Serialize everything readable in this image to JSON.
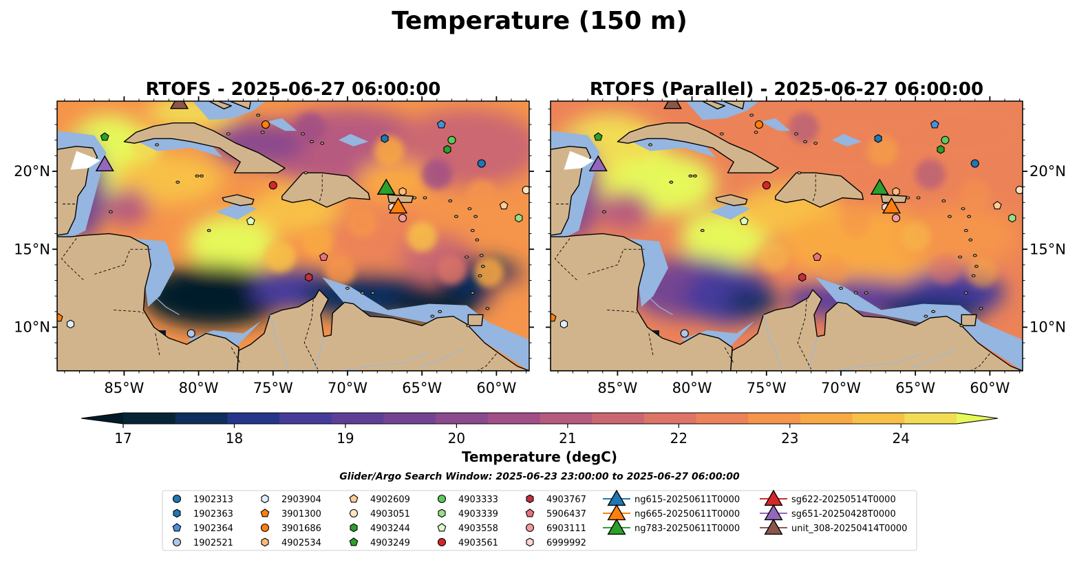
{
  "figure": {
    "title": "Temperature (150 m)",
    "search_window": "Glider/Argo Search Window: 2025-06-23 23:00:00 to 2025-06-27 06:00:00"
  },
  "panels": [
    {
      "title": "RTOFS - 2025-06-27 06:00:00",
      "variant": "rtofs"
    },
    {
      "title": "RTOFS (Parallel) - 2025-06-27 06:00:00",
      "variant": "parallel"
    }
  ],
  "map": {
    "lon_range": [
      -89.5,
      -57.8
    ],
    "lat_range": [
      7.2,
      24.5
    ],
    "lon_ticks": [
      {
        "value": -85,
        "label": "85°W"
      },
      {
        "value": -80,
        "label": "80°W"
      },
      {
        "value": -75,
        "label": "75°W"
      },
      {
        "value": -70,
        "label": "70°W"
      },
      {
        "value": -65,
        "label": "65°W"
      },
      {
        "value": -60,
        "label": "60°W"
      }
    ],
    "lat_ticks": [
      {
        "value": 20,
        "label": "20°N"
      },
      {
        "value": 15,
        "label": "15°N"
      },
      {
        "value": 10,
        "label": "10°N"
      }
    ],
    "land_color": "#d2b48c",
    "shelf_color": "#94b6e0"
  },
  "colorbar": {
    "label": "Temperature (degC)",
    "min": 17,
    "max": 24.5,
    "step": 0.5,
    "ticks": [
      "17",
      "18",
      "19",
      "20",
      "21",
      "22",
      "23",
      "24"
    ],
    "colors": [
      "#072336",
      "#0e2e5e",
      "#26348a",
      "#453b9b",
      "#5e3f98",
      "#744492",
      "#8b4a8d",
      "#a14f86",
      "#b75a7f",
      "#cb6772",
      "#dd7468",
      "#ec8358",
      "#f5944b",
      "#f9a943",
      "#f8c047",
      "#f2dc55"
    ],
    "under_color": "#041a29",
    "over_color": "#e6f85a"
  },
  "platforms": [
    {
      "id": "1902313",
      "marker": "circle",
      "color": "#1f77b4",
      "lon": -61.0,
      "lat": 20.5
    },
    {
      "id": "1902363",
      "marker": "hexagon",
      "color": "#1f77b4",
      "lon": -67.5,
      "lat": 22.1
    },
    {
      "id": "1902364",
      "marker": "pentagon",
      "color": "#4a90d9",
      "lon": -63.7,
      "lat": 23.0
    },
    {
      "id": "1902521",
      "marker": "circle",
      "color": "#aec7e8",
      "lon": -80.5,
      "lat": 9.6
    },
    {
      "id": "2903904",
      "marker": "hexagon",
      "color": "#dfeefc",
      "lon": -88.6,
      "lat": 10.2
    },
    {
      "id": "3901300",
      "marker": "pentagon",
      "color": "#ff7f0e",
      "lon": -89.4,
      "lat": 10.6
    },
    {
      "id": "3901686",
      "marker": "circle",
      "color": "#ff7f0e",
      "lon": -75.5,
      "lat": 23.0
    },
    {
      "id": "4902534",
      "marker": "hexagon",
      "color": "#ffbb78",
      "lon": -66.3,
      "lat": 18.7
    },
    {
      "id": "4902609",
      "marker": "pentagon",
      "color": "#ffcc99",
      "lon": -59.5,
      "lat": 17.8
    },
    {
      "id": "4903051",
      "marker": "circle",
      "color": "#ffe4c4",
      "lon": -58.0,
      "lat": 18.8
    },
    {
      "id": "4903244",
      "marker": "hexagon",
      "color": "#2ca02c",
      "lon": -63.3,
      "lat": 21.4
    },
    {
      "id": "4903249",
      "marker": "pentagon",
      "color": "#2ca02c",
      "lon": -86.3,
      "lat": 22.2
    },
    {
      "id": "4903333",
      "marker": "circle",
      "color": "#5cc95c",
      "lon": -63.0,
      "lat": 22.0
    },
    {
      "id": "4903339",
      "marker": "hexagon",
      "color": "#98df8a",
      "lon": -58.5,
      "lat": 17.0
    },
    {
      "id": "4903558",
      "marker": "pentagon",
      "color": "#d9fbc8",
      "lon": -76.5,
      "lat": 16.8
    },
    {
      "id": "4903561",
      "marker": "circle",
      "color": "#d62728",
      "lon": -75.0,
      "lat": 19.1
    },
    {
      "id": "4903767",
      "marker": "hexagon",
      "color": "#c0303d",
      "lon": -72.6,
      "lat": 13.2
    },
    {
      "id": "5906437",
      "marker": "pentagon",
      "color": "#e8737e",
      "lon": -71.6,
      "lat": 14.5
    },
    {
      "id": "6903111",
      "marker": "circle",
      "color": "#f29b9b",
      "lon": -66.3,
      "lat": 17.0
    },
    {
      "id": "6999992",
      "marker": "hexagon",
      "color": "#ffd5d5",
      "lon": -67.0,
      "lat": 17.7
    },
    {
      "id": "ng615-20250611T0000",
      "marker": "triangle",
      "color": "#1f77b4"
    },
    {
      "id": "ng665-20250611T0000",
      "marker": "triangle",
      "color": "#ff7f0e",
      "lon": -66.6,
      "lat": 17.7
    },
    {
      "id": "ng783-20250611T0000",
      "marker": "triangle",
      "color": "#2ca02c",
      "lon": -67.4,
      "lat": 18.9
    },
    {
      "id": "sg622-20250514T0000",
      "marker": "triangle",
      "color": "#d62728"
    },
    {
      "id": "sg651-20250428T0000",
      "marker": "triangle",
      "color": "#9467bd",
      "lon": -86.3,
      "lat": 20.4
    },
    {
      "id": "unit_308-20250414T0000",
      "marker": "triangle",
      "color": "#8c564b",
      "lon": -81.3,
      "lat": 24.4
    }
  ]
}
